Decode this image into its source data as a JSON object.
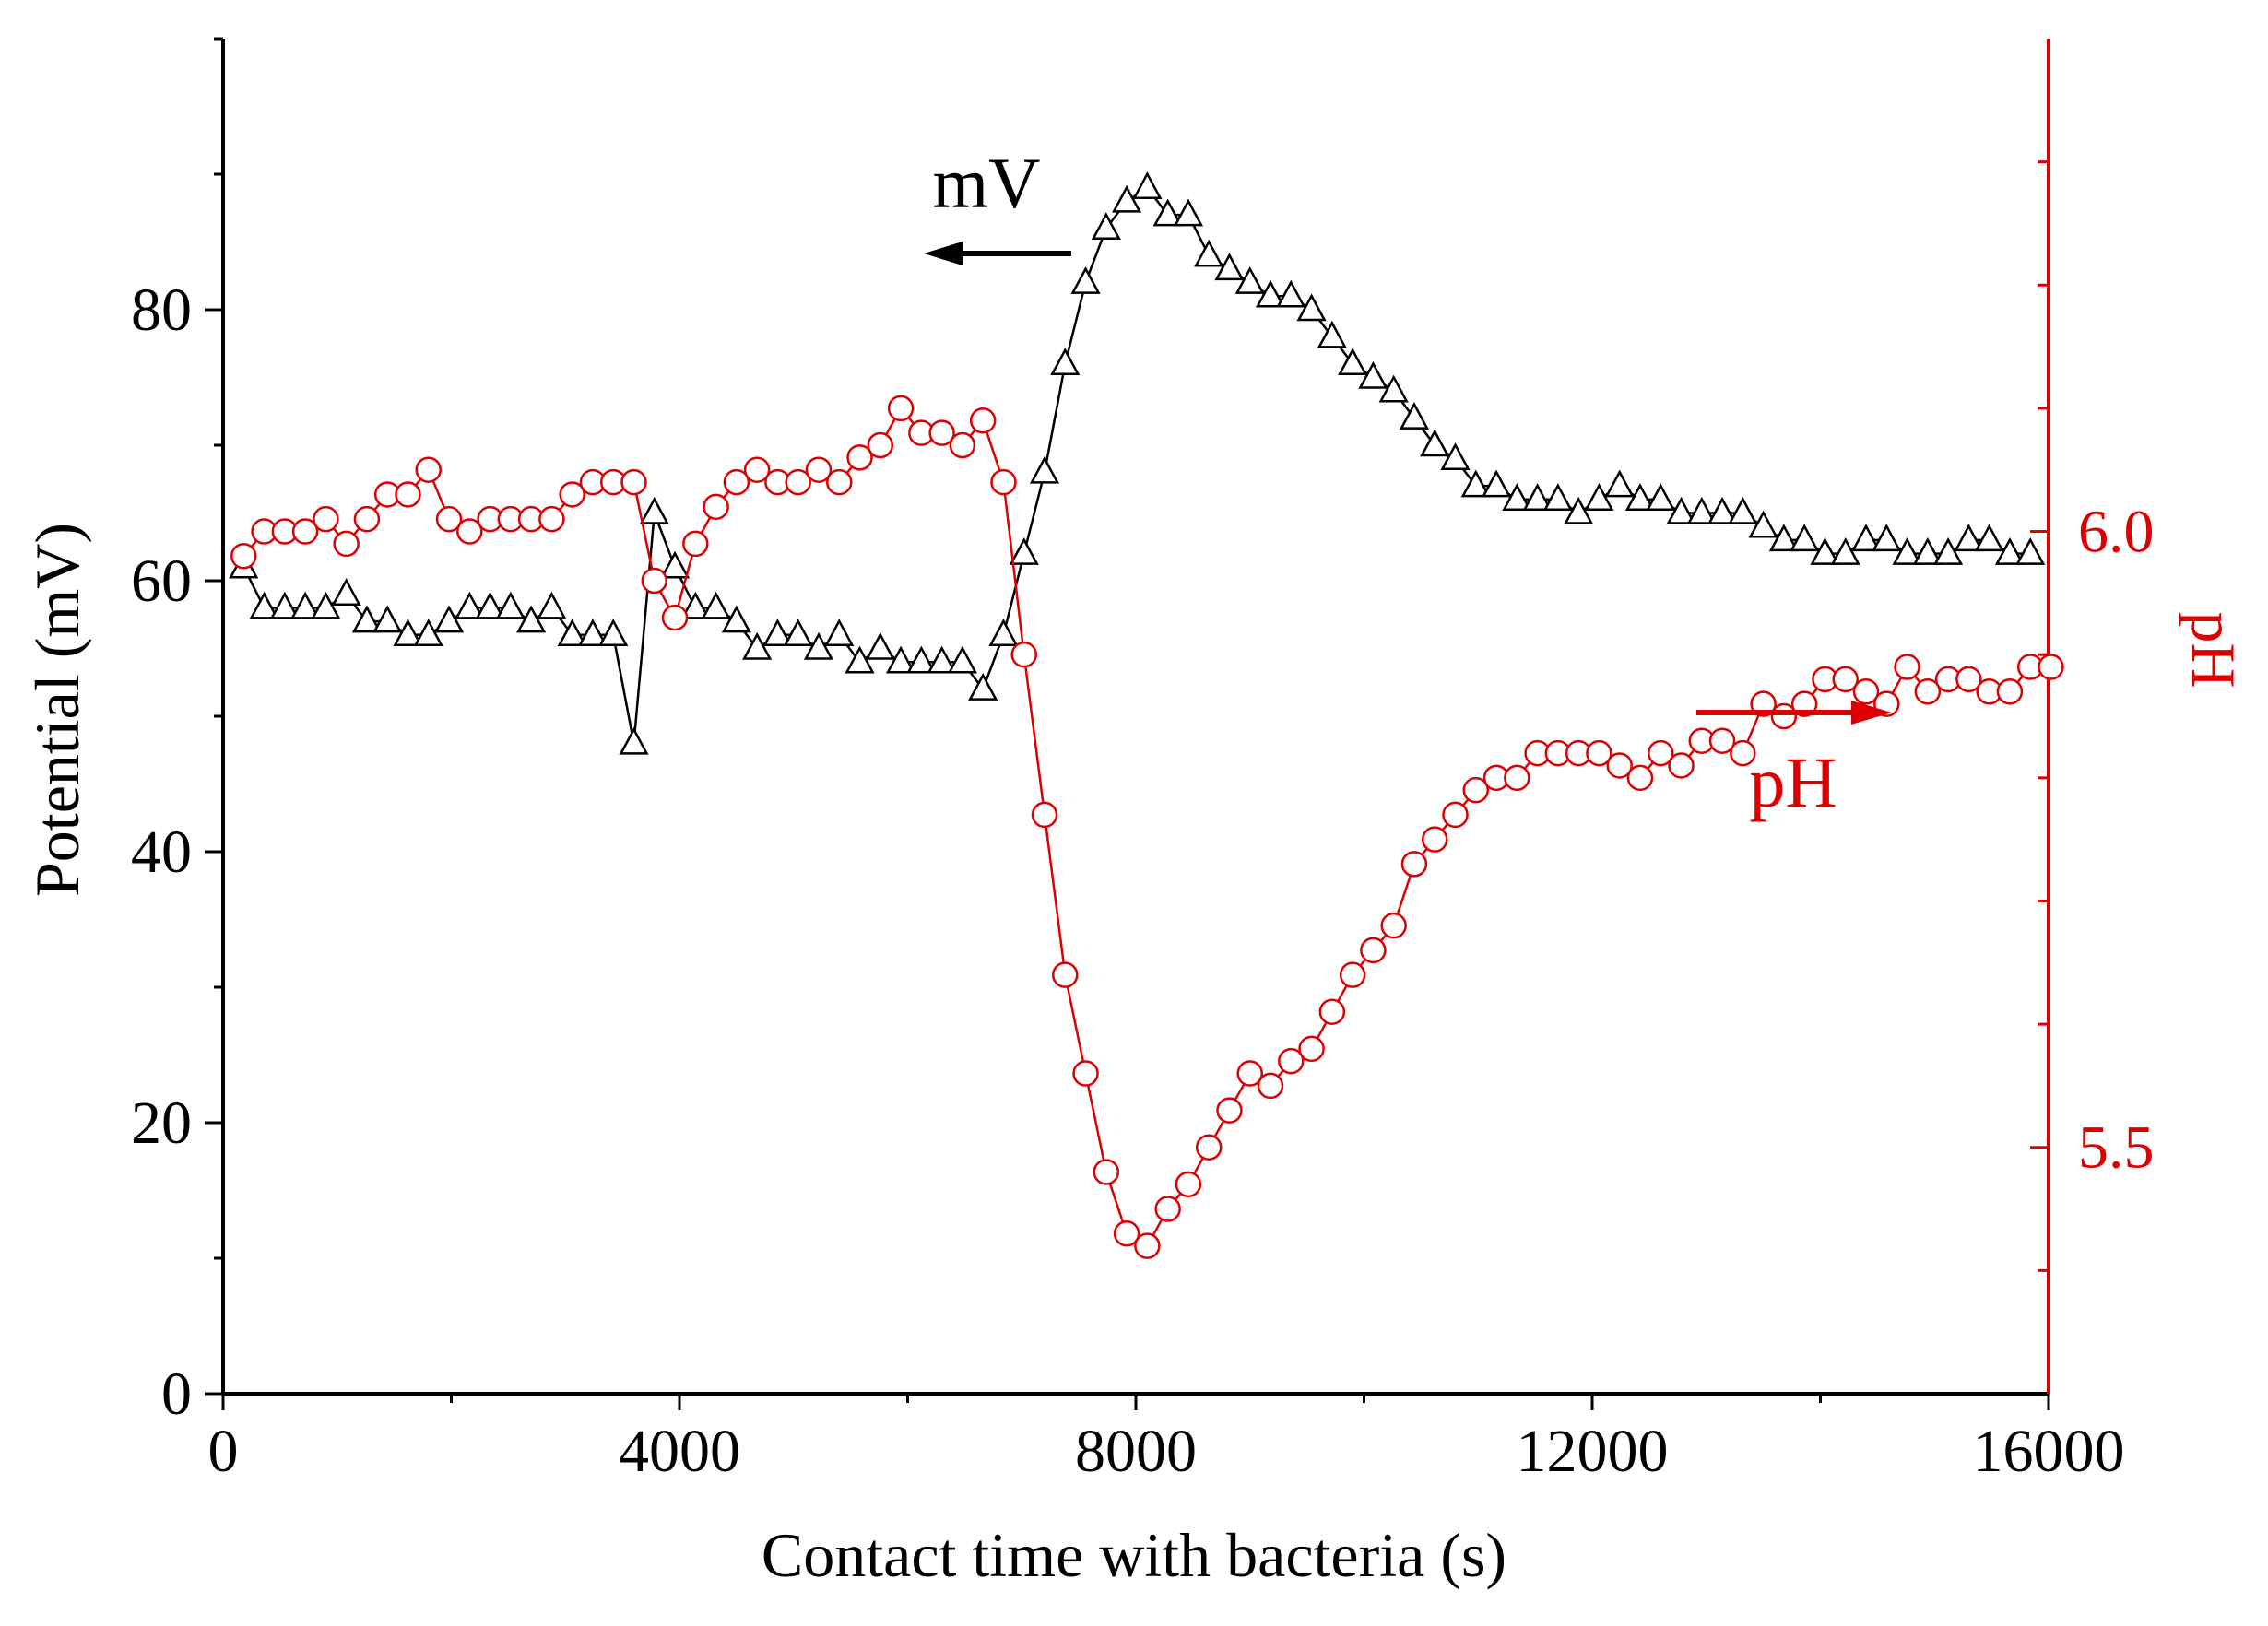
{
  "chart_data": {
    "type": "scatter",
    "title": "",
    "xlabel": "Contact time with bacteria (s)",
    "ylabel": "Potential (mV)",
    "y2label": "pH",
    "xlim": [
      0,
      16000
    ],
    "ylim": [
      0,
      100
    ],
    "y2lim": [
      5.3,
      6.4
    ],
    "grid": false,
    "xticks": [
      0,
      4000,
      8000,
      12000,
      16000
    ],
    "xtick_labels": [
      "0",
      "4000",
      "8000",
      "12000",
      "16000"
    ],
    "yticks": [
      0,
      20,
      40,
      60,
      80
    ],
    "ytick_labels": [
      "0",
      "20",
      "40",
      "60",
      "80"
    ],
    "y2ticks": [
      5.5,
      6.0
    ],
    "y2tick_labels": [
      "5.5",
      "6.0"
    ],
    "annotations": [
      {
        "text": "mV",
        "points_to": "left axis",
        "color": "#000000"
      },
      {
        "text": "pH",
        "points_to": "right axis",
        "color": "#dd0000"
      }
    ],
    "series": [
      {
        "name": "mV",
        "axis": "left",
        "marker": "triangle",
        "color": "#000000",
        "x": [
          180,
          360,
          540,
          720,
          900,
          1080,
          1260,
          1440,
          1620,
          1800,
          1980,
          2160,
          2340,
          2520,
          2700,
          2880,
          3060,
          3240,
          3420,
          3600,
          3780,
          3960,
          4140,
          4320,
          4500,
          4680,
          4860,
          5040,
          5220,
          5400,
          5580,
          5760,
          5940,
          6120,
          6300,
          6480,
          6660,
          6840,
          7020,
          7200,
          7380,
          7560,
          7740,
          7920,
          8100,
          8280,
          8460,
          8640,
          8820,
          9000,
          9180,
          9360,
          9540,
          9720,
          9900,
          10080,
          10260,
          10440,
          10620,
          10800,
          10980,
          11160,
          11340,
          11520,
          11700,
          11880,
          12060,
          12240,
          12420,
          12600,
          12780,
          12960,
          13140,
          13320,
          13500,
          13680,
          13860,
          14040,
          14220,
          14400,
          14580,
          14760,
          14940,
          15120,
          15300,
          15480,
          15660,
          15840
        ],
        "y": [
          61,
          58,
          58,
          58,
          58,
          59,
          57,
          57,
          56,
          56,
          57,
          58,
          58,
          58,
          57,
          58,
          56,
          56,
          56,
          48,
          65,
          61,
          58,
          58,
          57,
          55,
          56,
          56,
          55,
          56,
          54,
          55,
          54,
          54,
          54,
          54,
          52,
          56,
          62,
          68,
          76,
          82,
          86,
          88,
          89,
          87,
          87,
          84,
          83,
          82,
          81,
          81,
          80,
          78,
          76,
          75,
          74,
          72,
          70,
          69,
          67,
          67,
          66,
          66,
          66,
          65,
          66,
          67,
          66,
          66,
          65,
          65,
          65,
          65,
          64,
          63,
          63,
          62,
          62,
          63,
          63,
          62,
          62,
          62,
          63,
          63,
          62,
          62
        ]
      },
      {
        "name": "pH",
        "axis": "right",
        "marker": "circle",
        "color": "#dd0000",
        "x": [
          180,
          360,
          540,
          720,
          900,
          1080,
          1260,
          1440,
          1620,
          1800,
          1980,
          2160,
          2340,
          2520,
          2700,
          2880,
          3060,
          3240,
          3420,
          3600,
          3780,
          3960,
          4140,
          4320,
          4500,
          4680,
          4860,
          5040,
          5220,
          5400,
          5580,
          5760,
          5940,
          6120,
          6300,
          6480,
          6660,
          6840,
          7020,
          7200,
          7380,
          7560,
          7740,
          7920,
          8100,
          8280,
          8460,
          8640,
          8820,
          9000,
          9180,
          9360,
          9540,
          9720,
          9900,
          10080,
          10260,
          10440,
          10620,
          10800,
          10980,
          11160,
          11340,
          11520,
          11700,
          11880,
          12060,
          12240,
          12420,
          12600,
          12780,
          12960,
          13140,
          13320,
          13500,
          13680,
          13860,
          14040,
          14220,
          14400,
          14580,
          14760,
          14940,
          15120,
          15300,
          15480,
          15660,
          15840,
          16020
        ],
        "y": [
          5.98,
          6.0,
          6.0,
          6.0,
          6.01,
          5.99,
          6.01,
          6.03,
          6.03,
          6.05,
          6.01,
          6.0,
          6.01,
          6.01,
          6.01,
          6.01,
          6.03,
          6.04,
          6.04,
          6.04,
          5.96,
          5.93,
          5.99,
          6.02,
          6.04,
          6.05,
          6.04,
          6.04,
          6.05,
          6.04,
          6.06,
          6.07,
          6.1,
          6.08,
          6.08,
          6.07,
          6.09,
          6.04,
          5.9,
          5.77,
          5.64,
          5.56,
          5.48,
          5.43,
          5.42,
          5.45,
          5.47,
          5.5,
          5.53,
          5.56,
          5.55,
          5.57,
          5.58,
          5.61,
          5.64,
          5.66,
          5.68,
          5.73,
          5.75,
          5.77,
          5.79,
          5.8,
          5.8,
          5.82,
          5.82,
          5.82,
          5.82,
          5.81,
          5.8,
          5.82,
          5.81,
          5.83,
          5.83,
          5.82,
          5.86,
          5.85,
          5.86,
          5.88,
          5.88,
          5.87,
          5.86,
          5.89,
          5.87,
          5.88,
          5.88,
          5.87,
          5.87,
          5.89,
          5.89
        ]
      }
    ]
  }
}
